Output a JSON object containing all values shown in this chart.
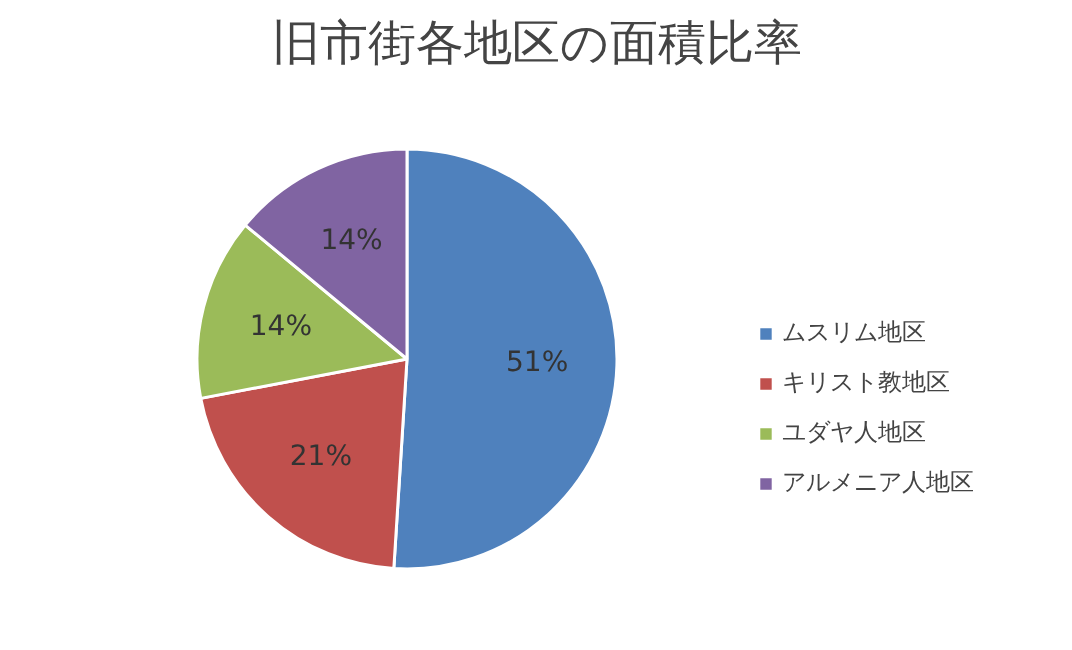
{
  "chart_data": {
    "type": "pie",
    "title": "旧市街各地区の面積比率",
    "categories": [
      "ムスリム地区",
      "キリスト教地区",
      "ユダヤ人地区",
      "アルメニア人地区"
    ],
    "values": [
      51,
      21,
      14,
      14
    ],
    "colors": [
      "#4f81bd",
      "#c0504d",
      "#9bbb59",
      "#8064a2"
    ],
    "value_labels": [
      "51%",
      "21%",
      "14%",
      "14%"
    ],
    "legend": "right"
  }
}
